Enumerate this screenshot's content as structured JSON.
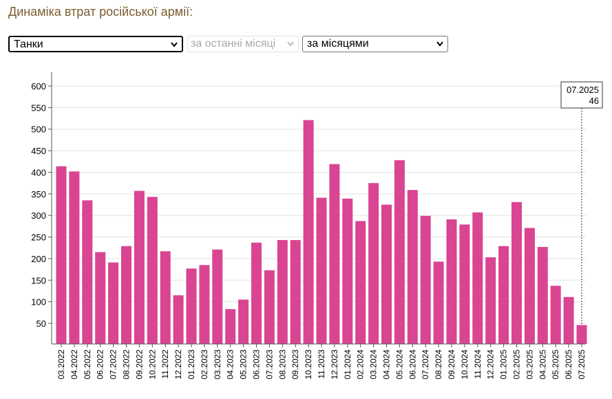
{
  "header": {
    "title": "Динаміка втрат російської армії:"
  },
  "filters": {
    "type": "Танки",
    "period": "за останні місяці",
    "grouping": "за місяцями"
  },
  "colors": {
    "bar": "#d94592",
    "grid": "#e0e0e0",
    "axis": "#555555",
    "title": "#7a5c2e"
  },
  "tooltip": {
    "label": "07.2025",
    "value": "46"
  },
  "chart_data": {
    "type": "bar",
    "title": "",
    "xlabel": "",
    "ylabel": "",
    "ylim": [
      0,
      620
    ],
    "yticks": [
      50,
      100,
      150,
      200,
      250,
      300,
      350,
      400,
      450,
      500,
      550,
      600
    ],
    "categories": [
      "03.2022",
      "04.2022",
      "05.2022",
      "06.2022",
      "07.2022",
      "08.2022",
      "09.2022",
      "10.2022",
      "11.2022",
      "12.2022",
      "01.2023",
      "02.2023",
      "03.2023",
      "04.2023",
      "05.2023",
      "06.2023",
      "07.2023",
      "08.2023",
      "09.2023",
      "10.2023",
      "11.2023",
      "12.2023",
      "01.2024",
      "02.2024",
      "03.2024",
      "04.2024",
      "05.2024",
      "06.2024",
      "07.2024",
      "08.2024",
      "09.2024",
      "10.2024",
      "11.2024",
      "12.2024",
      "01.2025",
      "02.2025",
      "03.2025",
      "04.2025",
      "05.2025",
      "06.2025",
      "07.2025"
    ],
    "values": [
      414,
      402,
      335,
      215,
      191,
      229,
      357,
      343,
      217,
      115,
      177,
      185,
      221,
      83,
      105,
      237,
      173,
      243,
      243,
      521,
      341,
      419,
      339,
      287,
      375,
      325,
      428,
      359,
      299,
      193,
      291,
      279,
      307,
      203,
      229,
      331,
      271,
      227,
      137,
      111,
      46
    ]
  }
}
